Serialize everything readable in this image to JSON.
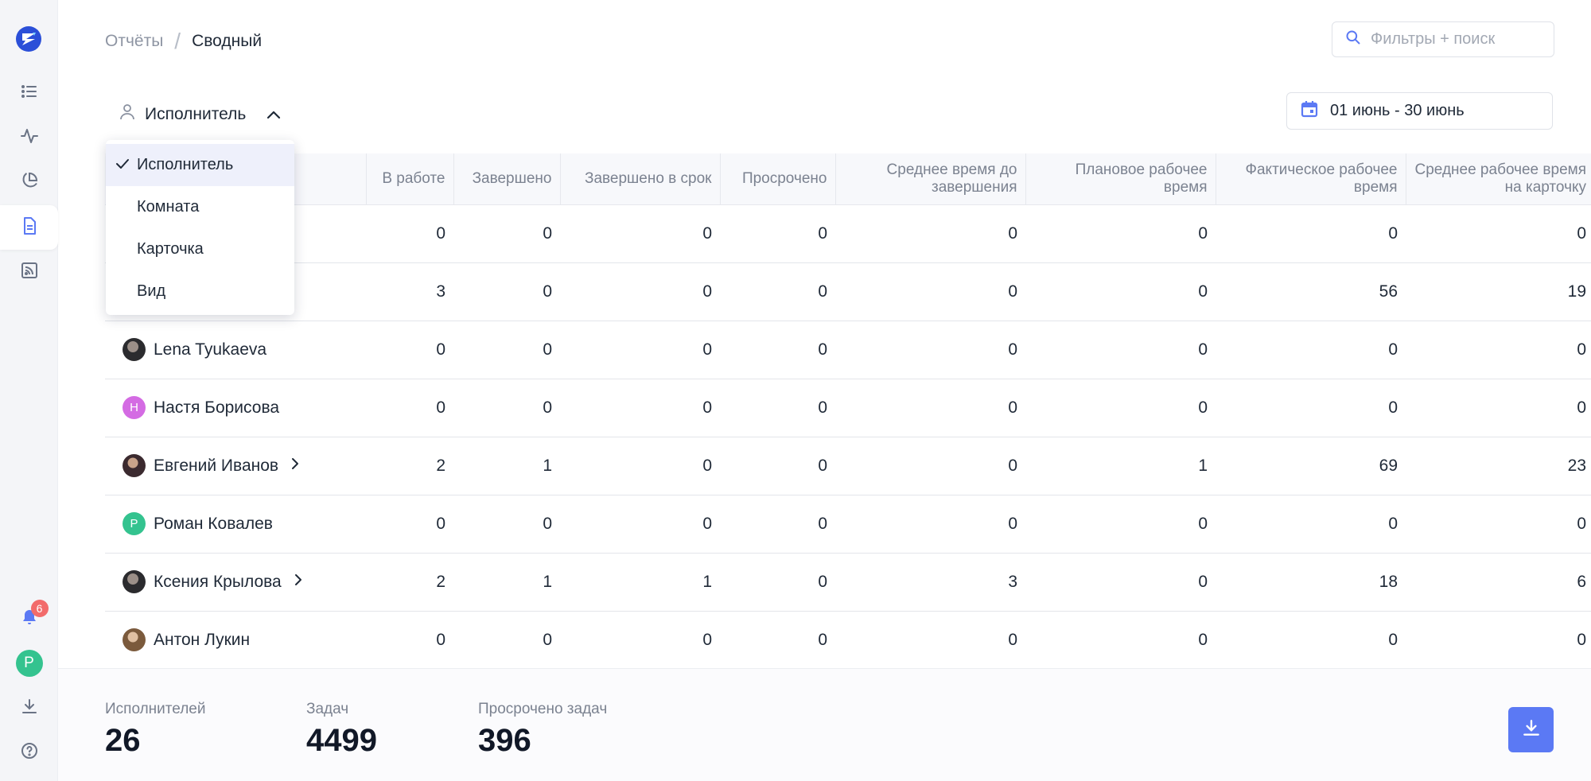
{
  "breadcrumb": {
    "root": "Отчёты",
    "current": "Сводный"
  },
  "search": {
    "placeholder": "Фильтры + поиск"
  },
  "group_by": {
    "selected": "Исполнитель",
    "options": [
      "Исполнитель",
      "Комната",
      "Карточка",
      "Вид"
    ]
  },
  "date_range": {
    "label": "01 июнь - 30 июнь"
  },
  "sidebar": {
    "notification_count": "6",
    "user_initial": "Р"
  },
  "table": {
    "columns": [
      "В работе",
      "Завершено",
      "Завершено в срок",
      "Просрочено",
      "Среднее время до завершения",
      "Плановое рабочее время",
      "Фактическое рабочее время",
      "Среднее рабочее время на карточку"
    ],
    "rows": [
      {
        "name": "",
        "avatar": "",
        "avatar_initial": "",
        "expandable": false,
        "values": [
          "0",
          "0",
          "0",
          "0",
          "0",
          "0",
          "0",
          "0"
        ]
      },
      {
        "name": "",
        "avatar": "",
        "avatar_initial": "",
        "expandable": false,
        "values": [
          "3",
          "0",
          "0",
          "0",
          "0",
          "0",
          "56",
          "19"
        ]
      },
      {
        "name": "Lena Tyukaeva",
        "avatar": "photo",
        "avatar_initial": "",
        "expandable": false,
        "values": [
          "0",
          "0",
          "0",
          "0",
          "0",
          "0",
          "0",
          "0"
        ]
      },
      {
        "name": "Настя Борисова",
        "avatar": "initial",
        "avatar_initial": "Н",
        "avatar_color": "#d46be3",
        "expandable": false,
        "values": [
          "0",
          "0",
          "0",
          "0",
          "0",
          "0",
          "0",
          "0"
        ]
      },
      {
        "name": "Евгений Иванов",
        "avatar": "photo2",
        "avatar_initial": "",
        "expandable": true,
        "values": [
          "2",
          "1",
          "0",
          "0",
          "0",
          "1",
          "69",
          "23"
        ]
      },
      {
        "name": "Роман Ковалев",
        "avatar": "initial",
        "avatar_initial": "Р",
        "avatar_color": "#34c38f",
        "expandable": false,
        "values": [
          "0",
          "0",
          "0",
          "0",
          "0",
          "0",
          "0",
          "0"
        ]
      },
      {
        "name": "Ксения Крылова",
        "avatar": "photo",
        "avatar_initial": "",
        "expandable": true,
        "values": [
          "2",
          "1",
          "1",
          "0",
          "3",
          "0",
          "18",
          "6"
        ]
      },
      {
        "name": "Антон Лукин",
        "avatar": "photo3",
        "avatar_initial": "",
        "expandable": false,
        "values": [
          "0",
          "0",
          "0",
          "0",
          "0",
          "0",
          "0",
          "0"
        ]
      }
    ]
  },
  "stats": {
    "assignees": {
      "label": "Исполнителей",
      "value": "26"
    },
    "tasks": {
      "label": "Задач",
      "value": "4499"
    },
    "overdue": {
      "label": "Просрочено задач",
      "value": "396"
    }
  },
  "colors": {
    "accent": "#5b79f4",
    "sidebar_bg": "#f4f5f8",
    "badge": "#f26b6b",
    "logo": "#2b4fd8"
  }
}
